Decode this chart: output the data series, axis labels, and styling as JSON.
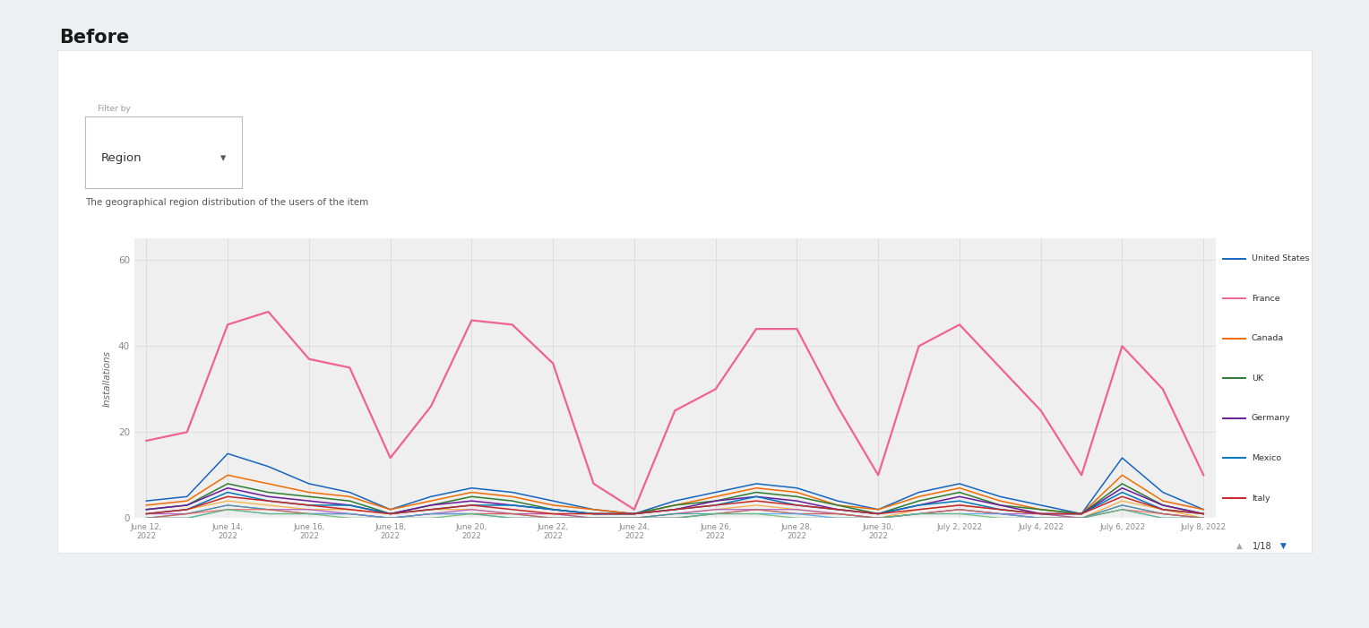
{
  "title": "Before",
  "subtitle": "The geographical region distribution of the users of the item",
  "filter_label": "Filter by",
  "filter_value": "Region",
  "ylabel": "Installations",
  "ylim": [
    0,
    65
  ],
  "yticks": [
    0,
    20,
    40,
    60
  ],
  "x_labels": [
    "June 12,\n2022",
    "June 14,\n2022",
    "June 16,\n2022",
    "June 18,\n2022",
    "June 20,\n2022",
    "June 22,\n2022",
    "June 24,\n2022",
    "June 26,\n2022",
    "June 28,\n2022",
    "June 30,\n2022",
    "July 2, 2022",
    "July 4, 2022",
    "July 6, 2022",
    "July 8, 2022"
  ],
  "pagination": "1/18",
  "legend": [
    {
      "label": "United States",
      "color": "#1565c0"
    },
    {
      "label": "France",
      "color": "#f06292"
    },
    {
      "label": "Canada",
      "color": "#ef6c00"
    },
    {
      "label": "UK",
      "color": "#2e7d32"
    },
    {
      "label": "Germany",
      "color": "#6a1b9a"
    },
    {
      "label": "Mexico",
      "color": "#0277bd"
    },
    {
      "label": "Italy",
      "color": "#c62828"
    }
  ],
  "series_france": [
    18,
    20,
    45,
    48,
    37,
    35,
    14,
    26,
    46,
    45,
    36,
    8,
    2,
    25,
    30,
    44,
    44,
    26,
    10,
    40,
    45,
    35,
    25,
    10,
    40,
    30,
    10
  ],
  "series_us": [
    4,
    5,
    15,
    12,
    8,
    6,
    2,
    5,
    7,
    6,
    4,
    2,
    1,
    4,
    6,
    8,
    7,
    4,
    2,
    6,
    8,
    5,
    3,
    1,
    14,
    6,
    2
  ],
  "series_canada": [
    3,
    4,
    10,
    8,
    6,
    5,
    2,
    4,
    6,
    5,
    3,
    2,
    1,
    3,
    5,
    7,
    6,
    3,
    2,
    5,
    7,
    4,
    2,
    1,
    10,
    4,
    2
  ],
  "series_uk": [
    2,
    3,
    8,
    6,
    5,
    4,
    1,
    3,
    5,
    4,
    2,
    1,
    1,
    3,
    4,
    6,
    5,
    3,
    1,
    4,
    6,
    3,
    2,
    1,
    8,
    3,
    1
  ],
  "series_germany": [
    2,
    3,
    7,
    5,
    4,
    3,
    1,
    3,
    4,
    3,
    2,
    1,
    1,
    2,
    4,
    5,
    4,
    2,
    1,
    3,
    5,
    3,
    1,
    1,
    7,
    3,
    1
  ],
  "series_mexico": [
    1,
    2,
    6,
    4,
    3,
    3,
    1,
    2,
    3,
    3,
    2,
    1,
    1,
    2,
    3,
    5,
    3,
    2,
    1,
    3,
    4,
    2,
    1,
    1,
    6,
    2,
    1
  ],
  "series_italy": [
    1,
    2,
    5,
    4,
    3,
    2,
    1,
    2,
    3,
    2,
    1,
    1,
    1,
    2,
    3,
    4,
    3,
    2,
    1,
    2,
    3,
    2,
    1,
    1,
    5,
    2,
    1
  ],
  "series_extra": [
    [
      1,
      2,
      4,
      3,
      2,
      2,
      1,
      2,
      2,
      1,
      1,
      0,
      0,
      1,
      2,
      3,
      2,
      1,
      0,
      2,
      3,
      2,
      1,
      0,
      4,
      2,
      0
    ],
    [
      1,
      1,
      3,
      2,
      2,
      1,
      0,
      1,
      2,
      1,
      1,
      0,
      0,
      1,
      2,
      2,
      2,
      1,
      0,
      1,
      2,
      1,
      1,
      0,
      3,
      1,
      0
    ],
    [
      0,
      1,
      3,
      2,
      1,
      1,
      0,
      1,
      1,
      1,
      0,
      0,
      0,
      1,
      1,
      2,
      1,
      1,
      0,
      1,
      2,
      1,
      0,
      0,
      3,
      1,
      0
    ],
    [
      0,
      1,
      2,
      2,
      1,
      1,
      0,
      1,
      1,
      1,
      0,
      0,
      0,
      0,
      1,
      2,
      1,
      1,
      0,
      1,
      2,
      1,
      0,
      0,
      2,
      1,
      0
    ],
    [
      0,
      0,
      2,
      1,
      1,
      1,
      0,
      1,
      1,
      0,
      0,
      0,
      0,
      0,
      1,
      1,
      1,
      0,
      0,
      1,
      1,
      1,
      0,
      0,
      2,
      0,
      0
    ],
    [
      0,
      0,
      2,
      1,
      1,
      0,
      0,
      0,
      1,
      0,
      0,
      0,
      0,
      0,
      1,
      1,
      0,
      0,
      0,
      1,
      1,
      0,
      0,
      0,
      2,
      0,
      0
    ]
  ],
  "extra_colors": [
    "#f5a623",
    "#ab47bc",
    "#26a69a",
    "#ef5350",
    "#42a5f5",
    "#66bb6a"
  ],
  "page_bg": "#eef0f3",
  "card_bg": "#ffffff",
  "plot_bg": "#efefef",
  "grid_color": "#dddddd",
  "filter_border": "#bbbbbb",
  "filter_label_color": "#999999",
  "filter_text_color": "#333333",
  "subtitle_color": "#555555",
  "tick_color": "#888888",
  "ylabel_color": "#666666",
  "title_color": "#1a1a1a",
  "pagination_arrow_up_color": "#aaaaaa",
  "pagination_arrow_down_color": "#1565c0",
  "pagination_text_color": "#333333"
}
